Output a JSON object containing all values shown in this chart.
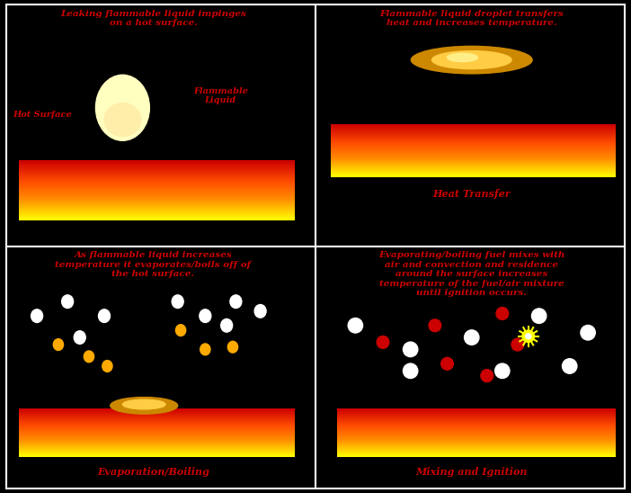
{
  "bg_color": "#000000",
  "text_color": "#cc0000",
  "fig_width": 7.02,
  "fig_height": 5.48,
  "panel_texts": {
    "tl_title": "Leaking flammable liquid impinges\non a hot surface.",
    "tl_label_hot": "Hot Surface",
    "tl_label_liquid": "Flammable\nLiquid",
    "tr_title": "Flammable liquid droplet transfers\nheat and increases temperature.",
    "tr_caption": "Heat Transfer",
    "bl_title": "As flammable liquid increases\ntemperature it evaporates/boils off of\nthe hot surface.",
    "bl_caption": "Evaporation/Boiling",
    "br_title": "Evaporating/boiling fuel mixes with\nair and convection and residence\naround the surface increases\ntemperature of the fuel/air mixture\nuntil ignition occurs.",
    "br_caption": "Mixing and Ignition"
  }
}
